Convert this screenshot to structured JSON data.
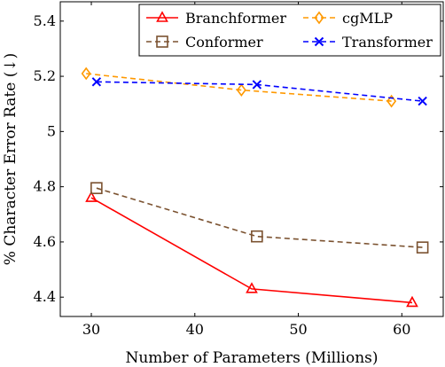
{
  "chart_data": {
    "type": "line",
    "xlabel": "Number of Parameters (Millions)",
    "ylabel": "% Character Error Rate (↓)",
    "xlim": [
      27,
      64
    ],
    "ylim": [
      4.33,
      5.47
    ],
    "xticks": [
      30,
      40,
      50,
      60
    ],
    "yticks": [
      4.4,
      4.6,
      4.8,
      5,
      5.2,
      5.4
    ],
    "xtick_labels": [
      "30",
      "40",
      "50",
      "60"
    ],
    "ytick_labels": [
      "4.4",
      "4.6",
      "4.8",
      "5",
      "5.2",
      "5.4"
    ],
    "grid": false,
    "legend_position": "top-right",
    "series": [
      {
        "name": "Branchformer",
        "color": "#ff0000",
        "marker": "triangle",
        "dash": "solid",
        "x": [
          30,
          45.5,
          61
        ],
        "y": [
          4.76,
          4.43,
          4.38
        ]
      },
      {
        "name": "cgMLP",
        "color": "#ff9900",
        "marker": "diamond",
        "dash": "dashed",
        "x": [
          29.5,
          44.5,
          59
        ],
        "y": [
          5.21,
          5.15,
          5.11
        ]
      },
      {
        "name": "Conformer",
        "color": "#7b5230",
        "marker": "square",
        "dash": "dashed",
        "x": [
          30.5,
          46,
          62
        ],
        "y": [
          4.795,
          4.62,
          4.58
        ]
      },
      {
        "name": "Transformer",
        "color": "#0000ff",
        "marker": "cross",
        "dash": "dashed",
        "x": [
          30.5,
          46,
          62
        ],
        "y": [
          5.18,
          5.17,
          5.11
        ]
      }
    ]
  }
}
